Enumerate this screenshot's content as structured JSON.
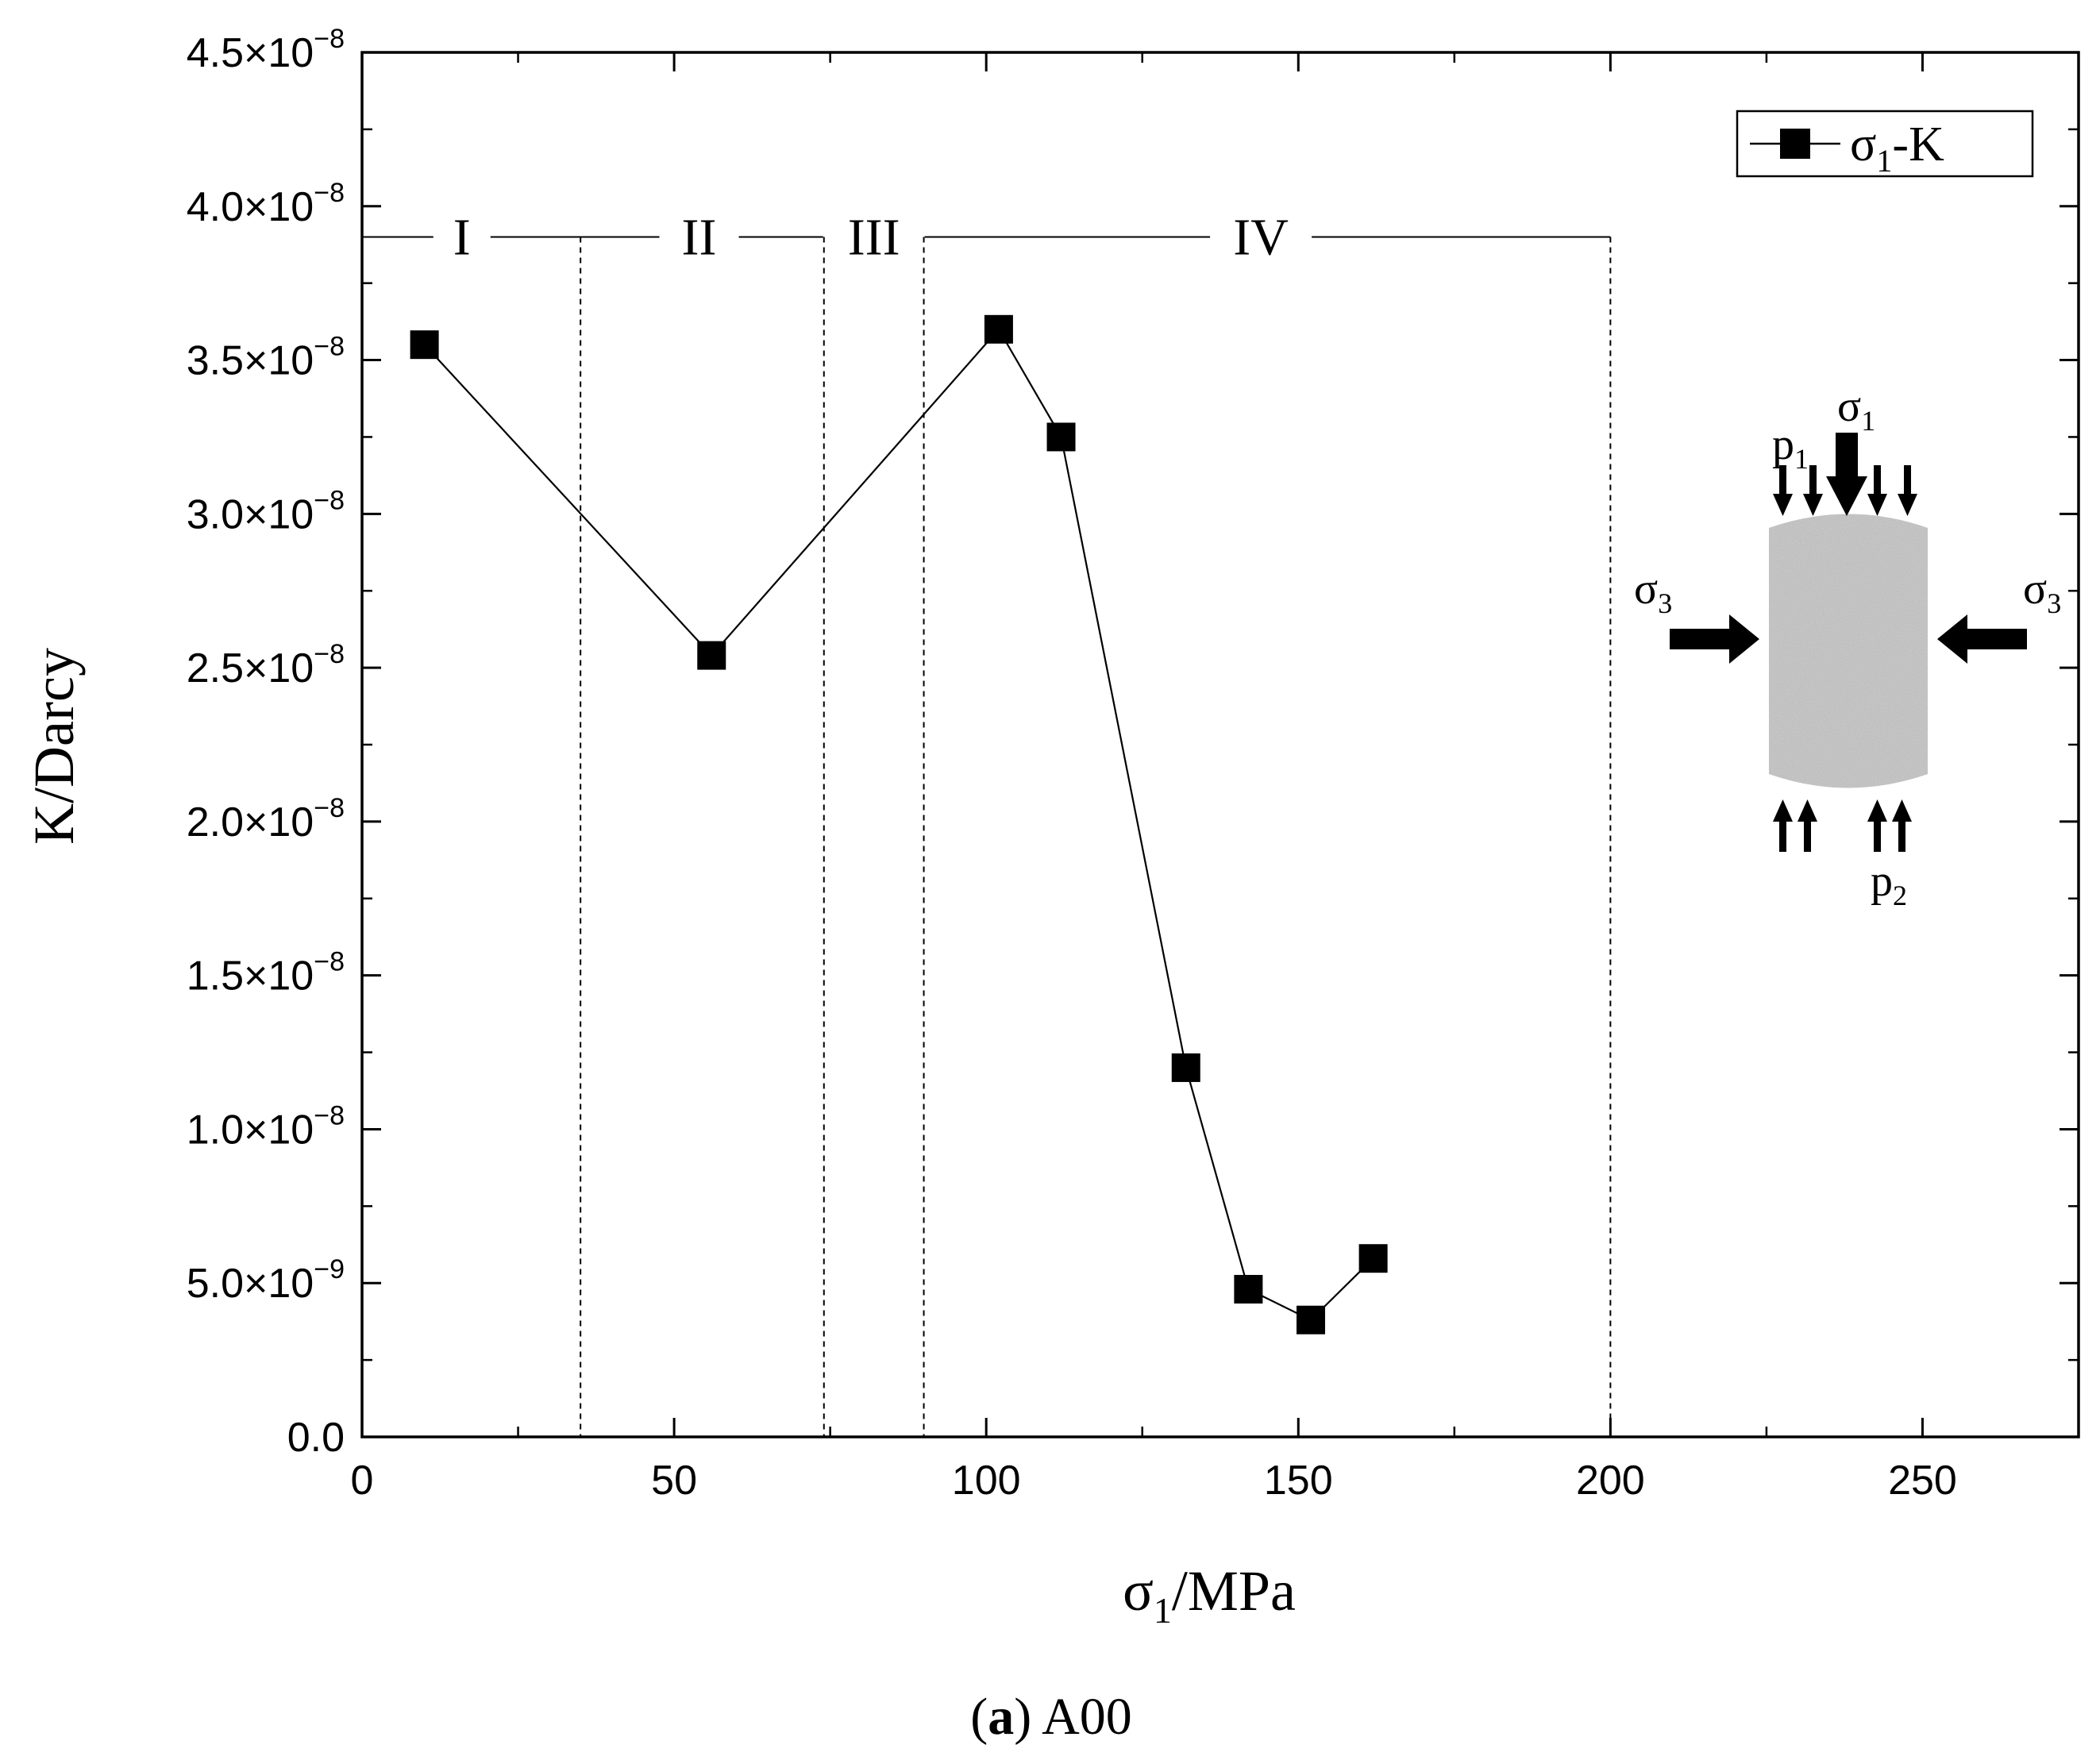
{
  "chart_data": {
    "type": "line",
    "title": "",
    "caption": {
      "label": "a",
      "text": "A00"
    },
    "xlabel": {
      "main": "σ",
      "sub": "1",
      "unit": "/MPa"
    },
    "ylabel": "K/Darcy",
    "xlim": [
      0,
      275
    ],
    "ylim": [
      0,
      4.5e-08
    ],
    "x_ticks": [
      {
        "value": 0,
        "label": "0"
      },
      {
        "value": 50,
        "label": "50"
      },
      {
        "value": 100,
        "label": "100"
      },
      {
        "value": 150,
        "label": "150"
      },
      {
        "value": 200,
        "label": "200"
      },
      {
        "value": 250,
        "label": "250"
      }
    ],
    "y_ticks": [
      {
        "value": 0,
        "mantissa": "0.0",
        "exponent": ""
      },
      {
        "value": 5e-09,
        "mantissa": "5.0×10",
        "exponent": "−9"
      },
      {
        "value": 1e-08,
        "mantissa": "1.0×10",
        "exponent": "−8"
      },
      {
        "value": 1.5e-08,
        "mantissa": "1.5×10",
        "exponent": "−8"
      },
      {
        "value": 2e-08,
        "mantissa": "2.0×10",
        "exponent": "−8"
      },
      {
        "value": 2.5e-08,
        "mantissa": "2.5×10",
        "exponent": "−8"
      },
      {
        "value": 3e-08,
        "mantissa": "3.0×10",
        "exponent": "−8"
      },
      {
        "value": 3.5e-08,
        "mantissa": "3.5×10",
        "exponent": "−8"
      },
      {
        "value": 4e-08,
        "mantissa": "4.0×10",
        "exponent": "−8"
      },
      {
        "value": 4.5e-08,
        "mantissa": "4.5×10",
        "exponent": "−8"
      }
    ],
    "series": [
      {
        "name": "σ1-K",
        "legend_main": "σ",
        "legend_sub": "1",
        "legend_suffix": "-K",
        "marker": "square",
        "color": "#000000",
        "x": [
          10,
          56,
          102,
          112,
          132,
          142,
          152,
          162
        ],
        "y": [
          3.55e-08,
          2.54e-08,
          3.6e-08,
          3.25e-08,
          1.2e-08,
          4.8e-09,
          3.8e-09,
          5.8e-09
        ]
      }
    ],
    "stages": {
      "y": 3.9e-08,
      "boundaries": [
        35,
        74,
        90,
        200
      ],
      "labels": [
        {
          "label": "I",
          "x": 16
        },
        {
          "label": "II",
          "x": 54
        },
        {
          "label": "III",
          "x": 82
        },
        {
          "label": "IV",
          "x": 144
        }
      ]
    },
    "inset": {
      "sigma1": {
        "main": "σ",
        "sub": "1"
      },
      "sigma3_left": {
        "main": "σ",
        "sub": "3"
      },
      "sigma3_right": {
        "main": "σ",
        "sub": "3"
      },
      "p1": {
        "main": "p",
        "sub": "1"
      },
      "p2": {
        "main": "p",
        "sub": "2"
      }
    }
  }
}
